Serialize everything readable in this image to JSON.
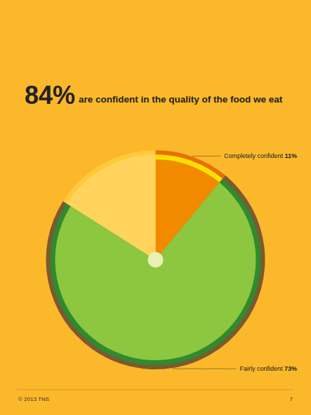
{
  "chart_data": {
    "type": "pie",
    "title": "84%",
    "subtitle": "are confident in the quality of the food we eat",
    "categories": [
      "Completely confident",
      "Fairly confident",
      null
    ],
    "values": [
      11,
      73,
      16
    ],
    "value_labels": [
      "11%",
      "73%",
      null
    ],
    "colors": [
      "#f28a00",
      "#8dc63f",
      "#ffd35c"
    ],
    "data_labels": true,
    "footer": "© 2013 TNS",
    "page": "7"
  }
}
